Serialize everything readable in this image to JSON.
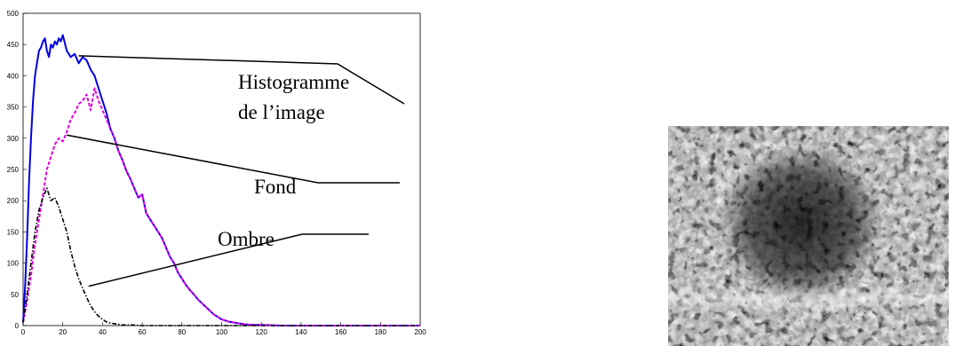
{
  "chart_data": {
    "type": "line",
    "title": "",
    "xlabel": "",
    "ylabel": "",
    "xlim": [
      0,
      200
    ],
    "ylim": [
      0,
      500
    ],
    "xticks": [
      "0",
      "20",
      "40",
      "60",
      "80",
      "100",
      "120",
      "140",
      "160",
      "180",
      "200"
    ],
    "yticks": [
      "0",
      "50",
      "100",
      "150",
      "200",
      "250",
      "300",
      "350",
      "400",
      "450",
      "500"
    ],
    "grid": false,
    "series": [
      {
        "key": "histogramme",
        "color": "#0000e0",
        "style": "solid",
        "x": [
          0,
          1,
          2,
          3,
          4,
          5,
          6,
          7,
          8,
          9,
          10,
          11,
          12,
          13,
          14,
          15,
          16,
          17,
          18,
          19,
          20,
          22,
          24,
          26,
          28,
          30,
          32,
          34,
          36,
          38,
          40,
          42,
          44,
          46,
          48,
          50,
          52,
          54,
          56,
          58,
          60,
          62,
          64,
          66,
          68,
          70,
          72,
          74,
          76,
          78,
          80,
          82,
          84,
          86,
          88,
          90,
          92,
          94,
          96,
          98,
          100,
          104,
          108,
          112,
          116,
          120,
          130,
          140,
          160,
          180,
          200
        ],
        "y": [
          5,
          60,
          140,
          230,
          300,
          360,
          400,
          420,
          440,
          445,
          455,
          460,
          440,
          430,
          450,
          445,
          455,
          450,
          460,
          455,
          465,
          440,
          430,
          435,
          420,
          430,
          425,
          410,
          400,
          380,
          360,
          340,
          315,
          300,
          280,
          265,
          248,
          235,
          220,
          205,
          210,
          180,
          170,
          160,
          150,
          140,
          125,
          110,
          100,
          85,
          75,
          65,
          57,
          50,
          42,
          36,
          30,
          24,
          18,
          14,
          10,
          6,
          4,
          2,
          1,
          1,
          0,
          0,
          0,
          0,
          0
        ]
      },
      {
        "key": "fond",
        "color": "#e000e0",
        "style": "dashed",
        "x": [
          0,
          2,
          4,
          6,
          8,
          10,
          12,
          14,
          16,
          18,
          20,
          22,
          24,
          26,
          28,
          30,
          32,
          34,
          36,
          38,
          40,
          42,
          44,
          46,
          48,
          50,
          52,
          54,
          56,
          58,
          60,
          62,
          64,
          66,
          68,
          70,
          72,
          74,
          76,
          78,
          80,
          82,
          84,
          86,
          88,
          90,
          92,
          94,
          96,
          98,
          100,
          104,
          108,
          112,
          116,
          120,
          130,
          140,
          160,
          180,
          200
        ],
        "y": [
          5,
          40,
          80,
          130,
          170,
          210,
          250,
          270,
          290,
          300,
          295,
          310,
          330,
          340,
          355,
          360,
          370,
          345,
          380,
          360,
          345,
          330,
          315,
          300,
          280,
          265,
          248,
          235,
          220,
          205,
          210,
          180,
          170,
          160,
          150,
          140,
          125,
          110,
          100,
          85,
          75,
          65,
          57,
          50,
          42,
          36,
          30,
          24,
          18,
          14,
          10,
          6,
          4,
          2,
          1,
          1,
          0,
          0,
          0,
          0,
          0
        ]
      },
      {
        "key": "ombre",
        "color": "#000000",
        "style": "dashdot",
        "x": [
          0,
          2,
          4,
          6,
          8,
          10,
          12,
          14,
          16,
          18,
          20,
          22,
          24,
          26,
          28,
          30,
          32,
          34,
          36,
          38,
          40,
          42,
          44,
          46,
          48,
          50,
          55,
          60,
          70,
          80,
          100,
          150,
          200
        ],
        "y": [
          5,
          50,
          100,
          150,
          185,
          205,
          220,
          200,
          205,
          190,
          170,
          150,
          120,
          95,
          75,
          60,
          45,
          32,
          22,
          15,
          10,
          6,
          4,
          3,
          2,
          1,
          1,
          0,
          0,
          0,
          0,
          0,
          0
        ]
      }
    ],
    "annotations": [
      {
        "key": "histogramme",
        "lines": [
          "Histogramme",
          "de l’image"
        ]
      },
      {
        "key": "fond",
        "lines": [
          "Fond"
        ]
      },
      {
        "key": "ombre",
        "lines": [
          "Ombre"
        ]
      }
    ]
  },
  "image": {
    "description_name": "sonar-image",
    "background": "#8f8f8f"
  }
}
